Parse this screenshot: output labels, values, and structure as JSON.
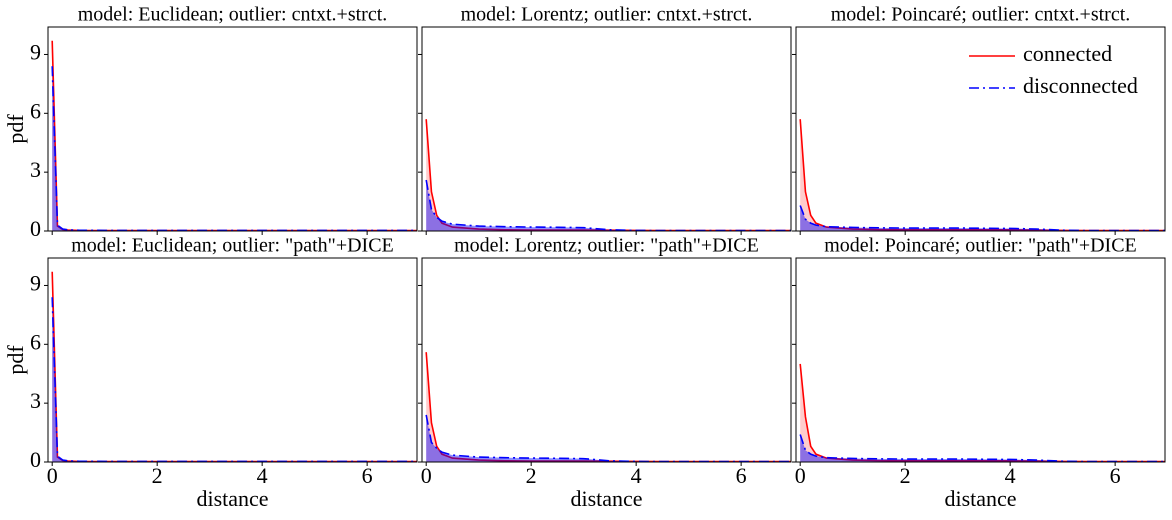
{
  "chart_data": [
    {
      "type": "line",
      "title": "model: Euclidean; outlier: cntxt.+strct.",
      "ylabel": "pdf",
      "x": [
        0,
        0.1,
        0.2,
        0.3,
        0.5,
        1,
        1.5,
        2,
        2.5,
        3,
        3.5,
        4,
        4.5,
        5,
        5.5,
        6,
        7
      ],
      "series": [
        {
          "color": "#ff0000",
          "linestyle": "solid",
          "values": [
            9.7,
            0.25,
            0.08,
            0.05,
            0.03,
            0.02,
            0.02,
            0.02,
            0.02,
            0.02,
            0.02,
            0.02,
            0.02,
            0.02,
            0.02,
            0.02,
            0.02
          ]
        },
        {
          "color": "#0000ff",
          "linestyle": "dashdot",
          "values": [
            8.4,
            0.3,
            0.1,
            0.06,
            0.04,
            0.03,
            0.03,
            0.03,
            0.03,
            0.03,
            0.03,
            0.03,
            0.03,
            0.03,
            0.03,
            0.03,
            0.03
          ]
        }
      ],
      "xlim": [
        -0.08,
        6.95
      ],
      "ylim": [
        0,
        10.4
      ],
      "xticks": [
        0,
        2,
        4,
        6
      ],
      "yticks": [
        0,
        3,
        6,
        9
      ]
    },
    {
      "type": "line",
      "title": "model: Lorentz; outlier: cntxt.+strct.",
      "x": [
        0,
        0.1,
        0.2,
        0.3,
        0.5,
        1,
        1.5,
        2,
        2.5,
        3,
        3.5,
        4,
        4.5,
        5,
        5.5,
        6,
        7
      ],
      "series": [
        {
          "color": "#ff0000",
          "linestyle": "solid",
          "values": [
            5.7,
            2.0,
            0.8,
            0.4,
            0.2,
            0.1,
            0.06,
            0.05,
            0.05,
            0.05,
            0.04,
            0.03,
            0.02,
            0.02,
            0.02,
            0.02,
            0.02
          ]
        },
        {
          "color": "#0000ff",
          "linestyle": "dashdot",
          "values": [
            2.6,
            1.1,
            0.7,
            0.5,
            0.35,
            0.25,
            0.22,
            0.2,
            0.19,
            0.17,
            0.06,
            0.03,
            0.02,
            0.02,
            0.02,
            0.02,
            0.02
          ]
        }
      ],
      "xlim": [
        -0.08,
        6.95
      ],
      "ylim": [
        0,
        10.4
      ],
      "xticks": [
        0,
        2,
        4,
        6
      ],
      "yticks": [
        0,
        3,
        6,
        9
      ]
    },
    {
      "type": "line",
      "title": "model: Poincaré; outlier: cntxt.+strct.",
      "legend": "upper right",
      "x": [
        0,
        0.1,
        0.2,
        0.3,
        0.5,
        1,
        1.5,
        2,
        2.5,
        3,
        3.5,
        4,
        4.5,
        5,
        5.5,
        6,
        7
      ],
      "series": [
        {
          "name": "connected",
          "color": "#ff0000",
          "linestyle": "solid",
          "values": [
            5.7,
            2.0,
            0.8,
            0.4,
            0.2,
            0.1,
            0.07,
            0.06,
            0.06,
            0.06,
            0.06,
            0.06,
            0.05,
            0.03,
            0.02,
            0.02,
            0.02
          ]
        },
        {
          "name": "disconnected",
          "color": "#0000ff",
          "linestyle": "dashdot",
          "values": [
            1.3,
            0.6,
            0.4,
            0.3,
            0.22,
            0.18,
            0.16,
            0.15,
            0.15,
            0.15,
            0.14,
            0.13,
            0.1,
            0.04,
            0.02,
            0.02,
            0.02
          ]
        }
      ],
      "xlim": [
        -0.08,
        6.95
      ],
      "ylim": [
        0,
        10.4
      ],
      "xticks": [
        0,
        2,
        4,
        6
      ],
      "yticks": [
        0,
        3,
        6,
        9
      ]
    },
    {
      "type": "line",
      "title": "model: Euclidean; outlier: \"path\"+DICE",
      "ylabel": "pdf",
      "xlabel": "distance",
      "x": [
        0,
        0.1,
        0.2,
        0.3,
        0.5,
        1,
        1.5,
        2,
        2.5,
        3,
        3.5,
        4,
        4.5,
        5,
        5.5,
        6,
        7
      ],
      "series": [
        {
          "color": "#ff0000",
          "linestyle": "solid",
          "values": [
            9.7,
            0.25,
            0.08,
            0.05,
            0.03,
            0.02,
            0.02,
            0.02,
            0.02,
            0.02,
            0.02,
            0.02,
            0.02,
            0.02,
            0.02,
            0.02,
            0.02
          ]
        },
        {
          "color": "#0000ff",
          "linestyle": "dashdot",
          "values": [
            8.4,
            0.3,
            0.1,
            0.06,
            0.04,
            0.03,
            0.03,
            0.03,
            0.03,
            0.03,
            0.03,
            0.03,
            0.03,
            0.03,
            0.03,
            0.03,
            0.03
          ]
        }
      ],
      "xlim": [
        -0.08,
        6.95
      ],
      "ylim": [
        0,
        10.4
      ],
      "xticks": [
        0,
        2,
        4,
        6
      ],
      "yticks": [
        0,
        3,
        6,
        9
      ]
    },
    {
      "type": "line",
      "title": "model: Lorentz; outlier: \"path\"+DICE",
      "xlabel": "distance",
      "x": [
        0,
        0.1,
        0.2,
        0.3,
        0.5,
        1,
        1.5,
        2,
        2.5,
        3,
        3.5,
        4,
        4.5,
        5,
        5.5,
        6,
        7
      ],
      "series": [
        {
          "color": "#ff0000",
          "linestyle": "solid",
          "values": [
            5.6,
            2.0,
            0.8,
            0.4,
            0.2,
            0.1,
            0.06,
            0.05,
            0.05,
            0.05,
            0.04,
            0.03,
            0.02,
            0.02,
            0.02,
            0.02,
            0.02
          ]
        },
        {
          "color": "#0000ff",
          "linestyle": "dashdot",
          "values": [
            2.4,
            1.0,
            0.7,
            0.5,
            0.35,
            0.25,
            0.22,
            0.2,
            0.19,
            0.17,
            0.06,
            0.03,
            0.02,
            0.02,
            0.02,
            0.02,
            0.02
          ]
        }
      ],
      "xlim": [
        -0.08,
        6.95
      ],
      "ylim": [
        0,
        10.4
      ],
      "xticks": [
        0,
        2,
        4,
        6
      ],
      "yticks": [
        0,
        3,
        6,
        9
      ]
    },
    {
      "type": "line",
      "title": "model: Poincaré; outlier: \"path\"+DICE",
      "xlabel": "distance",
      "x": [
        0,
        0.1,
        0.2,
        0.3,
        0.5,
        1,
        1.5,
        2,
        2.5,
        3,
        3.5,
        4,
        4.5,
        5,
        5.5,
        6,
        7
      ],
      "series": [
        {
          "color": "#ff0000",
          "linestyle": "solid",
          "values": [
            5.0,
            2.3,
            0.8,
            0.4,
            0.2,
            0.1,
            0.07,
            0.06,
            0.06,
            0.06,
            0.06,
            0.06,
            0.05,
            0.03,
            0.02,
            0.02,
            0.02
          ]
        },
        {
          "color": "#0000ff",
          "linestyle": "dashdot",
          "values": [
            1.4,
            0.6,
            0.4,
            0.3,
            0.22,
            0.18,
            0.16,
            0.15,
            0.15,
            0.15,
            0.14,
            0.13,
            0.1,
            0.04,
            0.02,
            0.02,
            0.02
          ]
        }
      ],
      "xlim": [
        -0.08,
        6.95
      ],
      "ylim": [
        0,
        10.4
      ],
      "xticks": [
        0,
        2,
        4,
        6
      ],
      "yticks": [
        0,
        3,
        6,
        9
      ]
    }
  ]
}
